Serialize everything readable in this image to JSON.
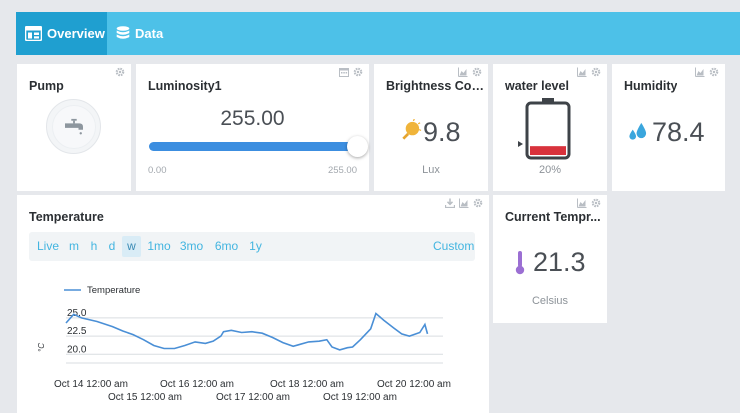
{
  "nav": {
    "tabs": [
      {
        "label": "Overview",
        "icon": "dashboard-icon",
        "active": true
      },
      {
        "label": "Data",
        "icon": "database-icon",
        "active": false
      }
    ]
  },
  "widgets": {
    "pump": {
      "title": "Pump",
      "icon": "faucet-icon"
    },
    "luminosity": {
      "title": "Luminosity1",
      "value": "255.00",
      "min": "0.00",
      "max": "255.00",
      "level": 1.0
    },
    "brightness": {
      "title": "Brightness Con...",
      "value": "9.8",
      "unit": "Lux",
      "icon": "bulb-icon"
    },
    "water_level": {
      "title": "water level",
      "value": "20%",
      "level": 0.2,
      "fill_color": "#d8323c",
      "icon": "battery-icon"
    },
    "humidity": {
      "title": "Humidity",
      "value": "78.4",
      "icon": "water-drop-icon",
      "accent": "#3aa6dd"
    },
    "current_temp": {
      "title": "Current Tempr...",
      "value": "21.3",
      "unit": "Celsius",
      "icon": "thermometer-icon",
      "accent": "#9b6fd3"
    },
    "temperature": {
      "title": "Temperature",
      "filters": [
        "Live",
        "m",
        "h",
        "d",
        "w",
        "1mo",
        "3mo",
        "6mo",
        "1y"
      ],
      "active_filter": "w",
      "custom_label": "Custom"
    }
  },
  "chart_data": {
    "type": "line",
    "title": "",
    "xlabel": "",
    "ylabel": "",
    "legend_position": "top-left",
    "ylim": [
      18.8,
      26.5
    ],
    "y_ticks": [
      "25.0",
      "22.5",
      "20.0"
    ],
    "y_tick_values": [
      25.0,
      22.5,
      20.0
    ],
    "x_ticks_row1": [
      "Oct 14 12:00 am",
      "Oct 16 12:00 am",
      "Oct 18 12:00 am",
      "Oct 20 12:00 am"
    ],
    "x_ticks_row2": [
      "Oct 15 12:00 am",
      "Oct 17 12:00 am",
      "Oct 19 12:00 am"
    ],
    "x_range": [
      0,
      7.3
    ],
    "series": [
      {
        "name": "Temperature",
        "color": "#4a8fd6",
        "points": [
          [
            0.0,
            24.3
          ],
          [
            0.15,
            25.5
          ],
          [
            0.3,
            25.0
          ],
          [
            0.6,
            24.5
          ],
          [
            0.9,
            23.8
          ],
          [
            1.1,
            23.2
          ],
          [
            1.3,
            22.7
          ],
          [
            1.5,
            22.0
          ],
          [
            1.7,
            21.2
          ],
          [
            1.9,
            20.8
          ],
          [
            2.1,
            20.8
          ],
          [
            2.3,
            21.2
          ],
          [
            2.5,
            21.7
          ],
          [
            2.7,
            21.5
          ],
          [
            2.85,
            21.8
          ],
          [
            3.0,
            22.5
          ],
          [
            3.05,
            23.1
          ],
          [
            3.2,
            23.3
          ],
          [
            3.4,
            23.0
          ],
          [
            3.6,
            23.1
          ],
          [
            3.8,
            22.9
          ],
          [
            4.0,
            22.3
          ],
          [
            4.2,
            21.6
          ],
          [
            4.4,
            21.1
          ],
          [
            4.5,
            21.3
          ],
          [
            4.7,
            21.7
          ],
          [
            4.9,
            21.8
          ],
          [
            5.05,
            22.0
          ],
          [
            5.15,
            21.0
          ],
          [
            5.3,
            20.6
          ],
          [
            5.45,
            20.9
          ],
          [
            5.55,
            21.0
          ],
          [
            5.7,
            22.0
          ],
          [
            5.9,
            23.5
          ],
          [
            6.0,
            25.6
          ],
          [
            6.15,
            24.7
          ],
          [
            6.35,
            23.6
          ],
          [
            6.5,
            22.8
          ],
          [
            6.65,
            22.5
          ],
          [
            6.85,
            23.0
          ],
          [
            6.95,
            24.1
          ],
          [
            7.0,
            22.8
          ]
        ]
      }
    ]
  }
}
